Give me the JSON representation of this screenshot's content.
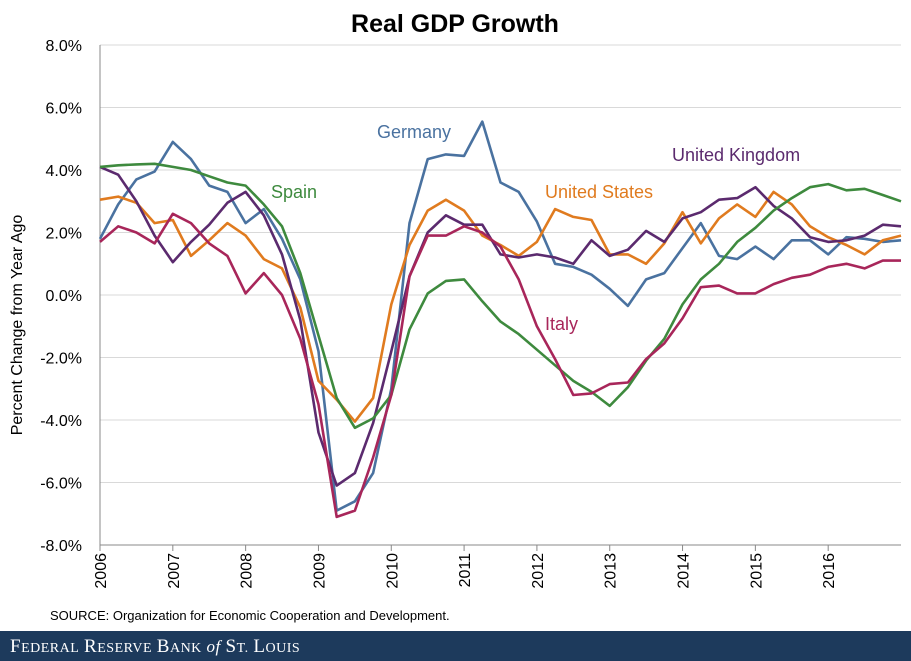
{
  "chart_data": {
    "type": "line",
    "title": "Real GDP Growth",
    "ylabel": "Percent Change from Year Ago",
    "xlabel": "",
    "ylim": [
      -8,
      8
    ],
    "yticks": [
      "8.0%",
      "6.0%",
      "4.0%",
      "2.0%",
      "0.0%",
      "-2.0%",
      "-4.0%",
      "-6.0%",
      "-8.0%"
    ],
    "xticks": [
      "2006",
      "2007",
      "2008",
      "2009",
      "2010",
      "2011",
      "2012",
      "2013",
      "2014",
      "2015",
      "2016"
    ],
    "x_start_year": 2006,
    "grid": "horizontal",
    "series": [
      {
        "name": "Germany",
        "color": "#4a72a0",
        "values": [
          1.8,
          2.9,
          3.7,
          3.95,
          4.9,
          4.35,
          3.5,
          3.3,
          2.3,
          2.75,
          1.8,
          0.5,
          -1.8,
          -6.9,
          -6.6,
          -5.7,
          -3.0,
          2.3,
          4.35,
          4.5,
          4.45,
          5.55,
          3.6,
          3.3,
          2.35,
          1.0,
          0.9,
          0.65,
          0.2,
          -0.35,
          0.5,
          0.7,
          1.5,
          2.3,
          1.25,
          1.15,
          1.55,
          1.15,
          1.75,
          1.75,
          1.3,
          1.85,
          1.8,
          1.7,
          1.75
        ]
      },
      {
        "name": "United States",
        "color": "#e07b1f",
        "values": [
          3.05,
          3.15,
          2.95,
          2.3,
          2.4,
          1.25,
          1.75,
          2.3,
          1.9,
          1.15,
          0.85,
          -0.4,
          -2.75,
          -3.35,
          -4.05,
          -3.3,
          -0.3,
          1.6,
          2.7,
          3.05,
          2.7,
          1.9,
          1.6,
          1.25,
          1.7,
          2.75,
          2.5,
          2.4,
          1.3,
          1.3,
          1.0,
          1.65,
          2.65,
          1.65,
          2.45,
          2.9,
          2.5,
          3.3,
          2.9,
          2.2,
          1.85,
          1.6,
          1.3,
          1.75,
          1.9
        ]
      },
      {
        "name": "United Kingdom",
        "color": "#5b2a6e",
        "values": [
          4.1,
          3.85,
          3.0,
          1.9,
          1.05,
          1.7,
          2.25,
          2.95,
          3.3,
          2.55,
          1.3,
          -0.8,
          -4.4,
          -6.1,
          -5.7,
          -4.1,
          -1.8,
          0.6,
          2.0,
          2.55,
          2.25,
          2.25,
          1.3,
          1.2,
          1.3,
          1.2,
          1.0,
          1.75,
          1.25,
          1.45,
          2.05,
          1.7,
          2.45,
          2.65,
          3.05,
          3.1,
          3.45,
          2.85,
          2.45,
          1.85,
          1.7,
          1.75,
          1.9,
          2.25,
          2.2
        ]
      },
      {
        "name": "Spain",
        "color": "#3e8a3e",
        "values": [
          4.1,
          4.15,
          4.18,
          4.2,
          4.1,
          4.0,
          3.8,
          3.6,
          3.5,
          2.9,
          2.2,
          0.7,
          -1.3,
          -3.3,
          -4.25,
          -3.95,
          -3.2,
          -1.1,
          0.05,
          0.45,
          0.5,
          -0.2,
          -0.85,
          -1.25,
          -1.75,
          -2.25,
          -2.75,
          -3.1,
          -3.55,
          -2.95,
          -2.1,
          -1.4,
          -0.3,
          0.5,
          1.0,
          1.7,
          2.15,
          2.7,
          3.1,
          3.45,
          3.55,
          3.35,
          3.4,
          3.2,
          3.0
        ]
      },
      {
        "name": "Italy",
        "color": "#a8265a",
        "values": [
          1.7,
          2.2,
          2.0,
          1.65,
          2.6,
          2.3,
          1.65,
          1.25,
          0.05,
          0.7,
          0.0,
          -1.4,
          -3.5,
          -7.1,
          -6.9,
          -5.2,
          -3.2,
          0.6,
          1.9,
          1.9,
          2.2,
          2.0,
          1.55,
          0.5,
          -1.0,
          -2.05,
          -3.2,
          -3.15,
          -2.85,
          -2.8,
          -2.05,
          -1.55,
          -0.75,
          0.25,
          0.3,
          0.05,
          0.05,
          0.35,
          0.55,
          0.65,
          0.9,
          1.0,
          0.85,
          1.1,
          1.1
        ]
      }
    ],
    "series_labels": [
      "Germany",
      "United States",
      "United Kingdom",
      "Spain",
      "Italy"
    ]
  },
  "source": "SOURCE: Organization for Economic Cooperation and Development.",
  "footer": "Federal Reserve Bank of St. Louis"
}
